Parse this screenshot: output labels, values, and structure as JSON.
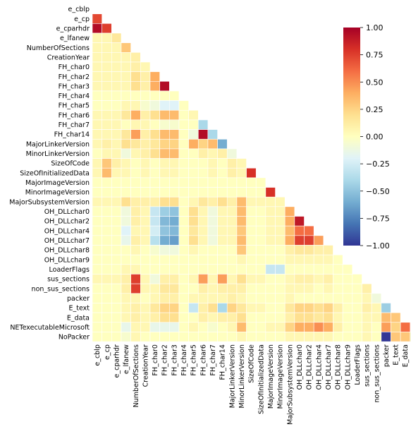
{
  "chart_data": {
    "type": "heatmap",
    "mask": "upper-triangle",
    "title": "",
    "xlabel": "",
    "ylabel": "",
    "labels": [
      "e_cblp",
      "e_cp",
      "e_cparhdr",
      "e_lfanew",
      "NumberOfSections",
      "CreationYear",
      "FH_char0",
      "FH_char2",
      "FH_char3",
      "FH_char4",
      "FH_char5",
      "FH_char6",
      "FH_char7",
      "FH_char14",
      "MajorLinkerVersion",
      "MinorLinkerVersion",
      "SizeOfCode",
      "SizeOfInitializedData",
      "MajorImageVersion",
      "MinorImageVersion",
      "MajorSubsystemVersion",
      "OH_DLLchar0",
      "OH_DLLchar2",
      "OH_DLLchar4",
      "OH_DLLchar7",
      "OH_DLLchar8",
      "OH_DLLchar9",
      "LoaderFlags",
      "sus_sections",
      "non_sus_sections",
      "packer",
      "E_text",
      "E_data",
      "NETexecutableMicrosoft",
      "NoPacker"
    ],
    "colorbar": {
      "min": -1.0,
      "max": 1.0,
      "ticks": [
        "1.00",
        "0.75",
        "0.50",
        "0.25",
        "0.00",
        "−0.25",
        "−0.50",
        "−0.75",
        "−1.00"
      ]
    },
    "values": [
      [],
      [
        0.72
      ],
      [
        0.95,
        0.75
      ],
      [
        0.05,
        0.05,
        0.15
      ],
      [
        0.05,
        0.05,
        0.05,
        0.3
      ],
      [
        0.05,
        0.05,
        0.05,
        0.05,
        0.1
      ],
      [
        0.05,
        0.05,
        0.05,
        0.05,
        0.1,
        0.05
      ],
      [
        0.05,
        0.05,
        0.05,
        0.05,
        0.2,
        0.1,
        0.4
      ],
      [
        0.05,
        0.05,
        0.05,
        0.05,
        0.2,
        0.1,
        0.4,
        0.95
      ],
      [
        0.0,
        0.0,
        0.0,
        0.0,
        0.0,
        0.0,
        0.0,
        0.0,
        0.0
      ],
      [
        0.0,
        0.0,
        0.0,
        0.05,
        0.05,
        -0.05,
        -0.1,
        -0.2,
        -0.2,
        0.0
      ],
      [
        0.05,
        0.05,
        0.05,
        0.15,
        0.4,
        0.1,
        0.2,
        0.35,
        0.35,
        0.0,
        0.05
      ],
      [
        0.05,
        0.05,
        0.05,
        0.0,
        0.05,
        0.05,
        0.0,
        -0.05,
        -0.05,
        0.0,
        0.0,
        -0.4
      ],
      [
        0.05,
        0.05,
        0.05,
        0.15,
        0.45,
        0.1,
        0.2,
        0.35,
        0.35,
        0.0,
        -0.1,
        0.95,
        -0.4
      ],
      [
        0.05,
        0.1,
        0.05,
        0.2,
        0.15,
        0.1,
        0.15,
        0.25,
        0.25,
        0.0,
        0.4,
        0.25,
        0.35,
        -0.6
      ],
      [
        0.0,
        0.05,
        0.05,
        -0.1,
        0.05,
        0.1,
        0.2,
        0.35,
        0.35,
        0.0,
        0.0,
        0.1,
        0.05,
        0.1,
        -0.1
      ],
      [
        0.05,
        0.3,
        0.1,
        0.05,
        0.0,
        0.05,
        0.0,
        0.05,
        0.05,
        0.0,
        0.0,
        0.0,
        0.05,
        0.0,
        0.1,
        0.05
      ],
      [
        0.05,
        0.35,
        0.05,
        0.05,
        0.0,
        0.05,
        0.0,
        0.05,
        0.05,
        0.0,
        0.0,
        0.0,
        0.05,
        0.0,
        0.1,
        0.05,
        0.8
      ],
      [
        0.0,
        0.0,
        0.0,
        0.0,
        0.0,
        0.0,
        0.0,
        0.0,
        0.0,
        0.0,
        0.0,
        0.0,
        0.0,
        0.0,
        0.0,
        0.0,
        0.0,
        0.0
      ],
      [
        0.0,
        0.0,
        0.0,
        0.0,
        0.0,
        0.0,
        0.0,
        0.0,
        0.0,
        0.0,
        0.0,
        0.0,
        0.0,
        0.0,
        0.0,
        0.0,
        0.0,
        0.0,
        0.8
      ],
      [
        0.05,
        0.05,
        0.05,
        0.2,
        0.1,
        0.1,
        0.1,
        0.2,
        0.2,
        0.0,
        0.05,
        0.15,
        0.1,
        0.2,
        0.1,
        0.35,
        0.05,
        0.05,
        0.05,
        0.05
      ],
      [
        0.0,
        0.0,
        0.0,
        -0.1,
        0.1,
        0.05,
        -0.3,
        -0.45,
        -0.5,
        0.0,
        0.2,
        0.05,
        -0.1,
        0.05,
        0.05,
        0.35,
        0.0,
        0.0,
        0.05,
        0.05,
        0.4
      ],
      [
        0.0,
        0.0,
        0.0,
        -0.1,
        0.1,
        0.05,
        -0.3,
        -0.55,
        -0.6,
        0.0,
        0.2,
        0.05,
        -0.1,
        0.05,
        0.05,
        0.35,
        0.0,
        0.0,
        0.05,
        0.05,
        0.4,
        0.9
      ],
      [
        0.0,
        0.0,
        0.0,
        -0.2,
        0.05,
        0.05,
        -0.25,
        -0.5,
        -0.55,
        0.0,
        0.15,
        0.05,
        -0.1,
        0.05,
        0.05,
        0.3,
        0.0,
        0.0,
        0.05,
        0.05,
        0.35,
        0.6,
        0.6
      ],
      [
        0.0,
        0.0,
        0.0,
        -0.15,
        0.1,
        0.05,
        -0.35,
        -0.6,
        -0.65,
        0.0,
        0.2,
        0.05,
        -0.1,
        0.05,
        0.05,
        0.35,
        0.0,
        0.0,
        0.05,
        0.05,
        0.4,
        0.75,
        0.75,
        0.45
      ],
      [
        0.0,
        0.0,
        0.0,
        0.0,
        0.05,
        0.0,
        -0.05,
        -0.1,
        -0.1,
        0.0,
        0.05,
        0.0,
        0.0,
        0.0,
        0.0,
        0.3,
        0.0,
        0.0,
        0.0,
        0.0,
        0.1,
        0.15,
        0.15,
        0.1,
        0.1
      ],
      [
        0.0,
        0.0,
        0.0,
        0.0,
        0.0,
        0.0,
        0.0,
        0.0,
        0.0,
        0.0,
        0.0,
        0.0,
        0.0,
        0.0,
        0.0,
        0.05,
        0.0,
        0.0,
        0.0,
        0.0,
        0.05,
        0.05,
        0.05,
        0.05,
        0.05,
        0.0
      ],
      [
        0.0,
        0.0,
        0.0,
        0.05,
        0.05,
        0.0,
        0.0,
        0.0,
        0.0,
        0.0,
        0.0,
        0.0,
        0.0,
        0.0,
        0.0,
        0.0,
        0.0,
        0.0,
        -0.3,
        -0.3,
        0.0,
        0.0,
        0.0,
        0.0,
        0.0,
        0.0,
        0.0
      ],
      [
        0.05,
        0.05,
        0.05,
        0.1,
        0.75,
        0.05,
        -0.1,
        0.1,
        0.1,
        0.0,
        0.05,
        0.45,
        0.05,
        0.45,
        0.05,
        0.2,
        0.05,
        0.05,
        0.0,
        0.0,
        0.05,
        0.1,
        0.1,
        0.05,
        0.1,
        0.0,
        0.0,
        0.0
      ],
      [
        0.0,
        0.0,
        0.0,
        0.1,
        0.75,
        0.05,
        0.05,
        0.15,
        0.15,
        0.0,
        0.0,
        0.1,
        0.05,
        0.1,
        0.1,
        0.1,
        0.0,
        0.0,
        0.0,
        0.0,
        0.05,
        0.05,
        0.05,
        0.0,
        0.05,
        0.0,
        0.0,
        0.0,
        0.1
      ],
      [
        0.0,
        0.0,
        0.0,
        0.05,
        0.05,
        0.0,
        0.05,
        0.1,
        0.1,
        0.0,
        0.05,
        0.05,
        0.05,
        0.05,
        0.1,
        0.05,
        0.0,
        0.0,
        0.0,
        0.0,
        0.05,
        0.0,
        0.0,
        0.0,
        0.0,
        0.0,
        0.0,
        0.0,
        0.05,
        -0.1
      ],
      [
        0.0,
        0.0,
        0.0,
        0.05,
        0.1,
        0.05,
        0.15,
        0.25,
        0.25,
        0.0,
        -0.3,
        0.1,
        0.2,
        -0.4,
        0.25,
        0.15,
        0.05,
        0.05,
        0.0,
        0.0,
        0.15,
        0.25,
        0.25,
        0.2,
        0.25,
        0.1,
        0.0,
        0.0,
        0.1,
        0.05,
        -0.45
      ],
      [
        0.0,
        0.0,
        0.0,
        0.05,
        0.1,
        0.05,
        0.1,
        0.2,
        0.2,
        0.0,
        0.0,
        0.1,
        0.05,
        0.1,
        0.1,
        0.2,
        0.0,
        0.0,
        0.0,
        0.0,
        0.1,
        0.2,
        0.2,
        0.15,
        0.2,
        0.05,
        0.0,
        0.0,
        0.05,
        0.05,
        0.35,
        0.3
      ],
      [
        0.0,
        0.0,
        0.0,
        -0.15,
        0.05,
        0.05,
        -0.15,
        -0.15,
        -0.15,
        0.0,
        0.05,
        0.0,
        -0.05,
        0.0,
        0.05,
        0.35,
        0.0,
        0.0,
        0.05,
        0.05,
        0.25,
        0.4,
        0.4,
        0.5,
        0.4,
        0.1,
        0.0,
        0.0,
        0.05,
        0.0,
        0.45,
        0.25,
        0.6
      ],
      [
        0.0,
        0.0,
        0.0,
        -0.05,
        0.05,
        0.0,
        0.0,
        0.0,
        0.0,
        0.0,
        0.0,
        0.0,
        0.0,
        0.0,
        0.0,
        0.05,
        0.0,
        0.0,
        0.0,
        0.0,
        0.05,
        0.05,
        0.05,
        0.05,
        0.05,
        0.0,
        0.0,
        0.0,
        0.05,
        0.0,
        -1.0,
        0.3,
        0.3,
        -0.1
      ]
    ]
  }
}
